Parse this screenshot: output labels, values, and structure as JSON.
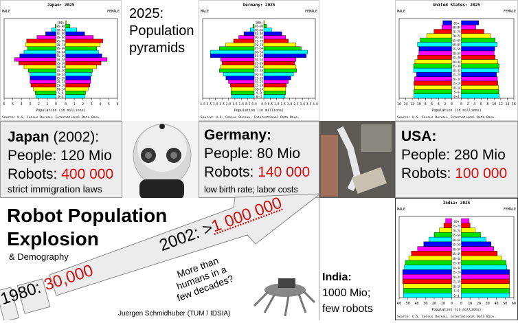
{
  "slide": {
    "heading_2025": "2025: Population pyramids",
    "japan": {
      "name": "Japan",
      "year": "(2002):",
      "people": "People: 120 Mio",
      "robots_label": "Robots: ",
      "robots_value": "400 000",
      "note": "strict immigration laws"
    },
    "germany": {
      "name": "Germany:",
      "people": "People: 80 Mio",
      "robots_label": "Robots: ",
      "robots_value": "140 000",
      "note": "low birth rate; labor costs"
    },
    "usa": {
      "name": "USA:",
      "people": "People: 280 Mio",
      "robots_label": "Robots: ",
      "robots_value": "100 000"
    },
    "india": {
      "line1": "India:",
      "line2": "1000 Mio;",
      "line3": "few robots"
    },
    "title_line1": "Robot Population",
    "title_line2": "Explosion",
    "subtitle": "& Demography",
    "arrow_1980_label": "1980: ",
    "arrow_1980_value": "30,000",
    "arrow_2002_label": "2002: >",
    "arrow_2002_value": "1 000 000",
    "question": [
      "More than",
      "humans in a",
      "few decades?"
    ],
    "credit": "Juergen Schmidhuber  (TUM / IDSIA)",
    "accent_color": "#d01010"
  },
  "chart_data": [
    {
      "type": "bar",
      "title": "Japan: 2025",
      "left_label": "MALE",
      "right_label": "FEMALE",
      "xlabel": "Population (in millions)",
      "source": "Source: U.S. Census Bureau, International Data Base.",
      "xlim": [
        0,
        6
      ],
      "ticks": [
        "6",
        "5",
        "4",
        "3",
        "2",
        "1",
        "0",
        "0",
        "1",
        "2",
        "3",
        "4",
        "5",
        "6"
      ],
      "categories": [
        "0-4",
        "5-9",
        "10-14",
        "15-19",
        "20-24",
        "25-29",
        "30-34",
        "35-39",
        "40-44",
        "45-49",
        "50-54",
        "55-59",
        "60-64",
        "65-69",
        "70-74",
        "75-79",
        "80-84",
        "85-89",
        "90-94",
        "95-99",
        "100+"
      ],
      "series": [
        {
          "name": "MALE",
          "values": [
            2.3,
            2.4,
            2.6,
            2.9,
            3.0,
            3.0,
            3.0,
            3.2,
            3.7,
            4.3,
            4.8,
            4.2,
            3.7,
            3.3,
            3.5,
            3.4,
            2.2,
            1.2,
            0.5,
            0.1,
            0.0
          ]
        },
        {
          "name": "FEMALE",
          "values": [
            2.2,
            2.3,
            2.6,
            2.8,
            2.9,
            2.9,
            3.0,
            3.1,
            3.6,
            4.1,
            4.8,
            4.2,
            3.8,
            3.6,
            4.0,
            4.3,
            3.2,
            2.2,
            1.3,
            0.5,
            0.1
          ]
        }
      ]
    },
    {
      "type": "bar",
      "title": "Germany: 2025",
      "left_label": "MALE",
      "right_label": "FEMALE",
      "xlabel": "Population (in millions)",
      "source": "Source: U.S. Census Bureau, International Data Base.",
      "xlim": [
        0,
        4
      ],
      "ticks": [
        "4.0",
        "3.5",
        "3.0",
        "2.5",
        "2.0",
        "1.5",
        "1.0",
        "0.5",
        "0.0",
        "0.0",
        "0.5",
        "1.0",
        "1.5",
        "2.0",
        "2.5",
        "3.0",
        "3.5",
        "4.0"
      ],
      "categories": [
        "0-4",
        "5-9",
        "10-14",
        "15-19",
        "20-24",
        "25-29",
        "30-34",
        "35-39",
        "40-44",
        "45-49",
        "50-54",
        "55-59",
        "60-64",
        "65-69",
        "70-74",
        "75-79",
        "80-84",
        "85-89",
        "90-94",
        "95-99",
        "100+"
      ],
      "series": [
        {
          "name": "MALE",
          "values": [
            1.75,
            1.8,
            1.8,
            1.85,
            2.0,
            2.2,
            2.4,
            2.7,
            2.6,
            2.5,
            2.6,
            3.4,
            3.4,
            2.7,
            2.2,
            1.6,
            1.2,
            0.8,
            0.3,
            0.1,
            0.0
          ]
        },
        {
          "name": "FEMALE",
          "values": [
            1.65,
            1.7,
            1.7,
            1.75,
            1.9,
            2.1,
            2.3,
            2.55,
            2.5,
            2.4,
            2.5,
            3.3,
            3.4,
            2.9,
            2.5,
            1.9,
            1.7,
            1.4,
            0.6,
            0.2,
            0.05
          ]
        }
      ]
    },
    {
      "type": "bar",
      "title": "United States: 2025",
      "left_label": "MALE",
      "right_label": "FEMALE",
      "xlabel": "Population (in millions)",
      "source": "Source: U.S. Census Bureau, International Data Base.",
      "xlim": [
        0,
        16
      ],
      "ticks": [
        "16",
        "14",
        "12",
        "10",
        "8",
        "6",
        "4",
        "2",
        "0",
        "0",
        "2",
        "4",
        "6",
        "8",
        "10",
        "12",
        "14",
        "16"
      ],
      "categories": [
        "0-4",
        "5-9",
        "10-14",
        "15-19",
        "20-24",
        "25-29",
        "30-34",
        "35-39",
        "40-44",
        "45-49",
        "50-54",
        "55-59",
        "60-64",
        "65-69",
        "70-74",
        "75-79",
        "80-84",
        "85+"
      ],
      "series": [
        {
          "name": "MALE",
          "values": [
            11.5,
            11.5,
            11.3,
            11.5,
            11.3,
            10.7,
            11.6,
            11.6,
            11.2,
            10.4,
            10.0,
            10.0,
            10.4,
            9.6,
            7.6,
            5.4,
            3.0,
            2.7
          ]
        },
        {
          "name": "FEMALE",
          "values": [
            11.5,
            11.4,
            11.3,
            11.1,
            11.0,
            10.7,
            11.4,
            11.5,
            11.1,
            10.3,
            10.0,
            10.2,
            10.9,
            10.3,
            8.9,
            6.9,
            4.4,
            5.3
          ]
        }
      ]
    },
    {
      "type": "bar",
      "title": "India: 2025",
      "left_label": "MALE",
      "right_label": "FEMALE",
      "xlabel": "Population (in millions)",
      "source": "Source: U.S. Census Bureau, International Data Base.",
      "xlim": [
        0,
        60
      ],
      "ticks": [
        "60",
        "50",
        "40",
        "30",
        "20",
        "10",
        "0",
        "0",
        "10",
        "20",
        "30",
        "40",
        "50",
        "60"
      ],
      "categories": [
        "0-4",
        "5-9",
        "10-14",
        "15-19",
        "20-24",
        "25-29",
        "30-34",
        "35-39",
        "40-44",
        "45-49",
        "50-54",
        "55-59",
        "60-64",
        "65-69",
        "70-74",
        "75-79",
        "80+"
      ],
      "series": [
        {
          "name": "MALE",
          "values": [
            55,
            55,
            55,
            56,
            56,
            56,
            54,
            53,
            49,
            46,
            39,
            32,
            26,
            20,
            14,
            9,
            7
          ]
        },
        {
          "name": "FEMALE",
          "values": [
            55,
            55,
            55,
            55,
            55,
            55,
            52,
            51,
            46,
            41,
            37,
            34,
            28,
            22,
            16,
            10,
            9
          ]
        }
      ]
    }
  ],
  "bar_colors": [
    "#00ffff",
    "#00e000",
    "#ffff00",
    "#ff0000",
    "#ff00ff",
    "#0000ff"
  ]
}
